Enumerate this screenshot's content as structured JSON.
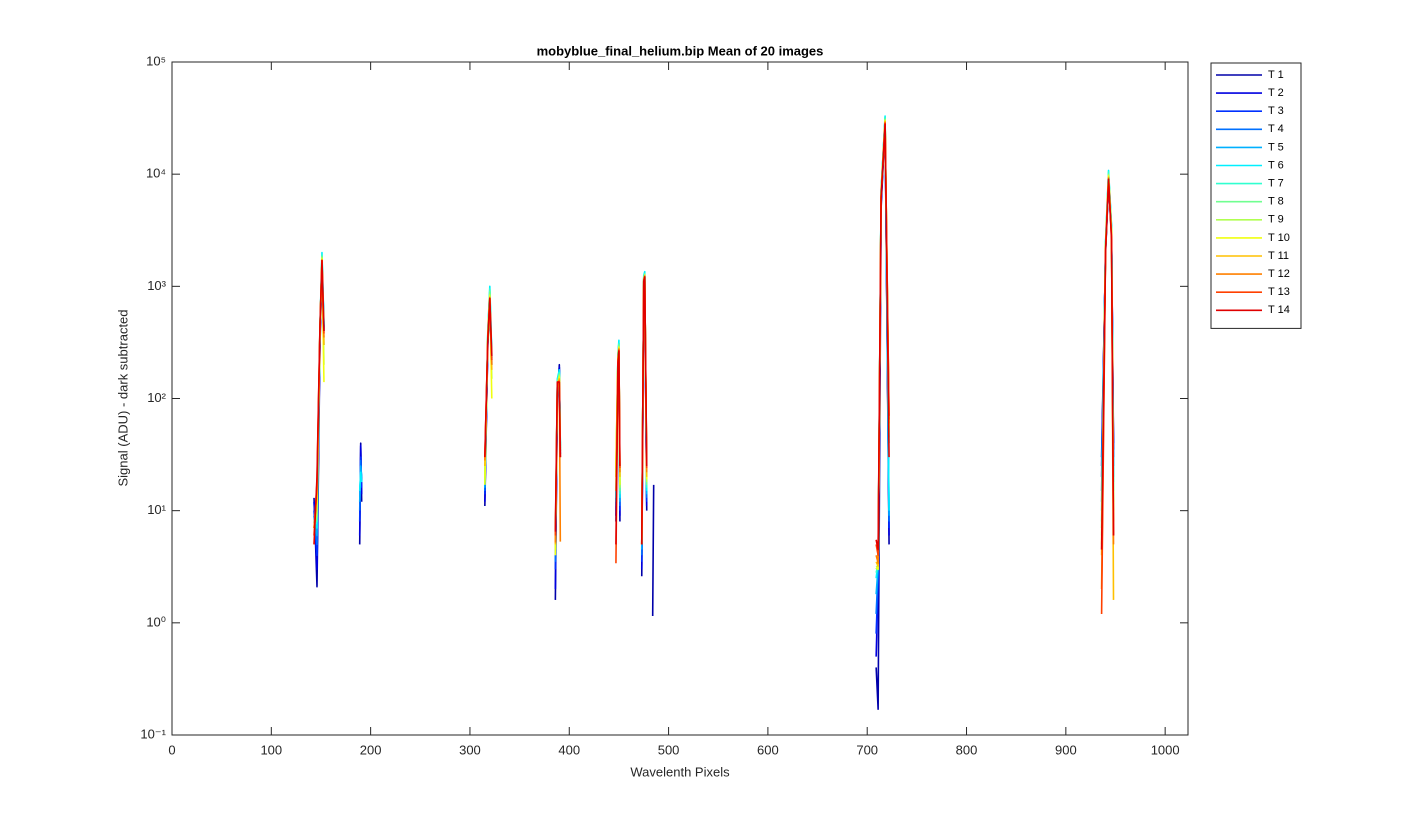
{
  "chart_data": {
    "type": "line",
    "title": "mobyblue_final_helium.bip  Mean of 20 images",
    "x_label": "Wavelenth Pixels",
    "y_label": "Signal (ADU) - dark subtracted",
    "yscale": "log",
    "grid": false,
    "legend_position": "outside-right",
    "xlim": [
      0,
      1023
    ],
    "xticks": [
      0,
      100,
      200,
      300,
      400,
      500,
      600,
      700,
      800,
      900,
      1000
    ],
    "ylim": [
      0.1,
      100000
    ],
    "yticks": [
      {
        "value": 0.1,
        "label": "10⁻¹"
      },
      {
        "value": 1,
        "label": "10⁰"
      },
      {
        "value": 10,
        "label": "10¹"
      },
      {
        "value": 100,
        "label": "10²"
      },
      {
        "value": 1000,
        "label": "10³"
      },
      {
        "value": 10000,
        "label": "10⁴"
      },
      {
        "value": 100000,
        "label": "10⁵"
      }
    ],
    "x": [
      143,
      146,
      149,
      151,
      153,
      170,
      189,
      190,
      191,
      250,
      315,
      318,
      320,
      322,
      350,
      386,
      388,
      390,
      391,
      420,
      447,
      449,
      450,
      451,
      460,
      473,
      475,
      476,
      478,
      480,
      484,
      485,
      600,
      709,
      711,
      714,
      718,
      722,
      800,
      936,
      940,
      943,
      946,
      948
    ],
    "series": [
      {
        "name": "T 1",
        "color": "#0000aa",
        "values": [
          13,
          2.1,
          300,
          1500,
          400,
          null,
          5,
          40,
          12,
          null,
          11,
          300,
          700,
          200,
          null,
          1.6,
          100,
          200,
          30,
          null,
          8,
          200,
          250,
          8,
          null,
          2.6,
          1000,
          1100,
          10,
          null,
          1.15,
          17,
          null,
          0.4,
          0.17,
          5000,
          28000,
          5,
          null,
          30,
          2000,
          8000,
          3000,
          40
        ]
      },
      {
        "name": "T 2",
        "color": "#0000e0",
        "values": [
          12,
          3,
          350,
          1600,
          420,
          null,
          6,
          38,
          14,
          null,
          12,
          320,
          720,
          210,
          null,
          2,
          110,
          190,
          32,
          null,
          9,
          210,
          260,
          9,
          null,
          3,
          1050,
          1150,
          11,
          null,
          null,
          null,
          null,
          0.5,
          2.3,
          5500,
          29000,
          6,
          null,
          25,
          2100,
          8200,
          3100,
          35
        ]
      },
      {
        "name": "T 3",
        "color": "#0030ff",
        "values": [
          10,
          4,
          380,
          1700,
          430,
          null,
          8,
          30,
          16,
          null,
          14,
          340,
          750,
          220,
          null,
          3,
          120,
          180,
          34,
          null,
          10,
          220,
          270,
          10,
          null,
          3.5,
          1100,
          1200,
          12,
          null,
          null,
          null,
          null,
          0.8,
          2.5,
          6000,
          30000,
          7,
          null,
          20,
          2200,
          8500,
          3200,
          30
        ]
      },
      {
        "name": "T 4",
        "color": "#0070ff",
        "values": [
          9,
          5,
          400,
          1750,
          440,
          null,
          10,
          28,
          18,
          null,
          15,
          360,
          800,
          230,
          null,
          3.5,
          130,
          170,
          36,
          null,
          11,
          230,
          290,
          11,
          null,
          4,
          1150,
          1250,
          13,
          null,
          null,
          null,
          null,
          1.2,
          3,
          6500,
          31000,
          8,
          null,
          15,
          2300,
          9000,
          3300,
          25
        ]
      },
      {
        "name": "T 5",
        "color": "#00b0ff",
        "values": [
          8,
          6,
          420,
          1850,
          450,
          null,
          12,
          25,
          20,
          null,
          16,
          380,
          900,
          240,
          null,
          4,
          140,
          175,
          38,
          null,
          12,
          240,
          310,
          12,
          null,
          4.5,
          1200,
          1300,
          14,
          null,
          null,
          null,
          null,
          1.8,
          3.2,
          7000,
          32000,
          9,
          null,
          12,
          2400,
          10000,
          3400,
          20
        ]
      },
      {
        "name": "T 6",
        "color": "#00f0ff",
        "values": [
          8,
          7,
          440,
          2000,
          460,
          null,
          15,
          22,
          18,
          null,
          17,
          400,
          1000,
          250,
          null,
          4.5,
          150,
          180,
          40,
          null,
          13,
          250,
          330,
          13,
          null,
          5,
          1250,
          1350,
          15,
          null,
          null,
          null,
          null,
          2.5,
          3.5,
          7200,
          33000,
          10,
          null,
          10,
          2500,
          10800,
          3500,
          18
        ]
      },
      {
        "name": "T 7",
        "color": "#30ffd0",
        "values": [
          8,
          8,
          430,
          1900,
          400,
          null,
          null,
          null,
          null,
          null,
          18,
          390,
          950,
          230,
          null,
          5,
          140,
          170,
          38,
          null,
          20,
          240,
          310,
          14,
          null,
          5,
          1200,
          1300,
          16,
          null,
          null,
          null,
          null,
          2.8,
          3.3,
          7000,
          32000,
          40,
          null,
          8,
          2400,
          10500,
          3300,
          15
        ]
      },
      {
        "name": "T 8",
        "color": "#70ff90",
        "values": [
          7,
          9,
          420,
          1850,
          300,
          null,
          null,
          null,
          null,
          null,
          19,
          380,
          900,
          200,
          null,
          5,
          135,
          165,
          36,
          null,
          22,
          235,
          300,
          15,
          null,
          5,
          1180,
          1280,
          17,
          null,
          null,
          null,
          null,
          3,
          3.2,
          6800,
          31000,
          45,
          null,
          7,
          2350,
          10000,
          3200,
          12
        ]
      },
      {
        "name": "T 9",
        "color": "#b0ff50",
        "values": [
          7,
          10,
          410,
          1800,
          200,
          null,
          null,
          null,
          null,
          null,
          20,
          370,
          850,
          150,
          null,
          4.5,
          130,
          160,
          35,
          null,
          24,
          230,
          290,
          16,
          null,
          5,
          1160,
          1260,
          18,
          null,
          null,
          null,
          null,
          3.2,
          3.1,
          6600,
          30500,
          50,
          null,
          6,
          2300,
          9800,
          3100,
          10
        ]
      },
      {
        "name": "T 10",
        "color": "#f0ff10",
        "values": [
          7,
          12,
          400,
          1750,
          140,
          null,
          null,
          null,
          null,
          null,
          17,
          360,
          820,
          100,
          null,
          4,
          125,
          155,
          34,
          null,
          25,
          225,
          285,
          17,
          null,
          5,
          1150,
          1250,
          19,
          null,
          null,
          null,
          null,
          3.1,
          3,
          6500,
          30000,
          55,
          null,
          5,
          2250,
          9600,
          3000,
          8
        ]
      },
      {
        "name": "T 11",
        "color": "#ffc000",
        "values": [
          7,
          14,
          420,
          1720,
          300,
          null,
          null,
          null,
          null,
          null,
          25,
          350,
          800,
          180,
          null,
          5,
          130,
          150,
          30,
          null,
          20,
          220,
          280,
          20,
          null,
          5,
          1140,
          1240,
          20,
          null,
          null,
          null,
          null,
          3.5,
          3.2,
          6400,
          29500,
          60,
          null,
          4,
          2200,
          9400,
          2900,
          1.6
        ]
      },
      {
        "name": "T 12",
        "color": "#ff8000",
        "values": [
          7,
          16,
          430,
          1700,
          350,
          null,
          null,
          null,
          null,
          null,
          28,
          345,
          790,
          200,
          null,
          5.2,
          135,
          145,
          5.3,
          null,
          15,
          215,
          275,
          22,
          null,
          5,
          1130,
          1230,
          22,
          null,
          null,
          null,
          null,
          4,
          3.4,
          6300,
          29000,
          65,
          null,
          2,
          2150,
          9200,
          2800,
          5
        ]
      },
      {
        "name": "T 13",
        "color": "#ff4000",
        "values": [
          6,
          18,
          440,
          1700,
          380,
          null,
          null,
          null,
          null,
          null,
          30,
          340,
          780,
          220,
          null,
          6,
          140,
          140,
          30,
          null,
          3.4,
          210,
          270,
          24,
          null,
          5,
          1120,
          1220,
          24,
          null,
          null,
          null,
          null,
          5,
          4,
          6200,
          28500,
          70,
          null,
          1.2,
          2100,
          9000,
          2700,
          6
        ]
      },
      {
        "name": "T 14",
        "color": "#e00000",
        "values": [
          5,
          20,
          450,
          1700,
          400,
          null,
          null,
          null,
          null,
          null,
          30,
          335,
          780,
          240,
          null,
          6.5,
          140,
          140,
          30,
          null,
          5,
          205,
          265,
          25,
          null,
          5,
          1110,
          1210,
          25,
          null,
          null,
          null,
          null,
          5.5,
          4.5,
          6100,
          28000,
          30,
          null,
          4.5,
          2050,
          9000,
          2600,
          6
        ]
      }
    ]
  }
}
